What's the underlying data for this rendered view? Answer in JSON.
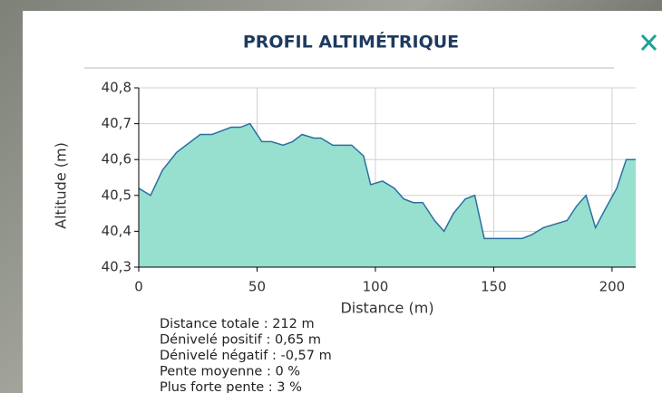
{
  "panel": {
    "title": "PROFIL ALTIMÉTRIQUE",
    "stats": [
      "Distance totale : 212 m",
      "Dénivelé positif : 0,65 m",
      "Dénivelé négatif : -0,57 m",
      "Pente moyenne : 0 %",
      "Plus forte pente : 3 %"
    ]
  },
  "chart_data": {
    "type": "area",
    "x_label": "Distance (m)",
    "y_label": "Altitude (m)",
    "x": [
      0,
      5,
      10,
      16,
      22,
      26,
      31,
      39,
      43,
      47,
      52,
      56,
      61,
      65,
      69,
      74,
      77,
      82,
      90,
      95,
      98,
      103,
      108,
      112,
      116,
      120,
      125,
      129,
      133,
      138,
      142,
      146,
      162,
      166,
      171,
      181,
      185,
      189,
      193,
      197,
      202,
      206,
      210
    ],
    "values": [
      40.52,
      40.5,
      40.57,
      40.62,
      40.65,
      40.67,
      40.67,
      40.69,
      40.69,
      40.7,
      40.65,
      40.65,
      40.64,
      40.65,
      40.67,
      40.66,
      40.66,
      40.64,
      40.64,
      40.61,
      40.53,
      40.54,
      40.52,
      40.49,
      40.48,
      40.48,
      40.43,
      40.4,
      40.45,
      40.49,
      40.5,
      40.38,
      40.38,
      40.39,
      40.41,
      40.43,
      40.47,
      40.5,
      40.41,
      40.46,
      40.52,
      40.6,
      40.6
    ],
    "fill_color": "#97e0cf",
    "line_color": "#2b6fa0",
    "xlim": [
      0,
      210
    ],
    "ylim": [
      40.3,
      40.8
    ],
    "xticks": [
      0,
      50,
      100,
      150,
      200
    ],
    "yticks": [
      {
        "value": 40.3,
        "label": "40,3"
      },
      {
        "value": 40.4,
        "label": "40,4"
      },
      {
        "value": 40.5,
        "label": "40,5"
      },
      {
        "value": 40.6,
        "label": "40,6"
      },
      {
        "value": 40.7,
        "label": "40,7"
      },
      {
        "value": 40.8,
        "label": "40,8"
      }
    ],
    "grid": true
  }
}
